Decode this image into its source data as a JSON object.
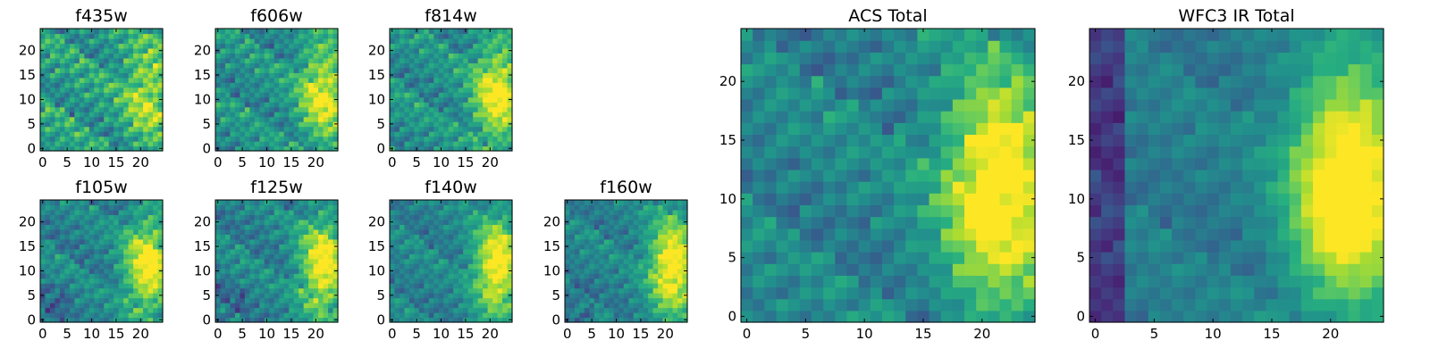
{
  "figure": {
    "colormap": "viridis",
    "colors": {
      "low": "#440154",
      "mid": "#21918c",
      "high": "#fde725",
      "axes": "#000000"
    }
  },
  "chart_data": [
    {
      "type": "heatmap",
      "title": "f435w",
      "shape": [
        25,
        25
      ],
      "xlim": [
        0,
        24
      ],
      "ylim": [
        0,
        24
      ],
      "xticks": [
        0,
        5,
        10,
        15,
        20
      ],
      "yticks": [
        0,
        5,
        10,
        15,
        20
      ],
      "field": "noisy, faint excess toward lower-right"
    },
    {
      "type": "heatmap",
      "title": "f606w",
      "shape": [
        25,
        25
      ],
      "xlim": [
        0,
        24
      ],
      "ylim": [
        0,
        24
      ],
      "xticks": [
        0,
        5,
        10,
        15,
        20
      ],
      "yticks": [
        0,
        5,
        10,
        15,
        20
      ],
      "field": "bright arc along right edge"
    },
    {
      "type": "heatmap",
      "title": "f814w",
      "shape": [
        25,
        25
      ],
      "xlim": [
        0,
        24
      ],
      "ylim": [
        0,
        24
      ],
      "xticks": [
        0,
        5,
        10,
        15,
        20
      ],
      "yticks": [
        0,
        5,
        10,
        15,
        20
      ],
      "field": "bright arc along right edge"
    },
    {
      "type": "heatmap",
      "title": "f105w",
      "shape": [
        25,
        25
      ],
      "xlim": [
        0,
        24
      ],
      "ylim": [
        0,
        24
      ],
      "xticks": [
        0,
        5,
        10,
        15,
        20
      ],
      "yticks": [
        0,
        5,
        10,
        15,
        20
      ],
      "field": "bright arc along right edge, dark patches lower-left"
    },
    {
      "type": "heatmap",
      "title": "f125w",
      "shape": [
        25,
        25
      ],
      "xlim": [
        0,
        24
      ],
      "ylim": [
        0,
        24
      ],
      "xticks": [
        0,
        5,
        10,
        15,
        20
      ],
      "yticks": [
        0,
        5,
        10,
        15,
        20
      ],
      "field": "bright arc along right edge"
    },
    {
      "type": "heatmap",
      "title": "f140w",
      "shape": [
        25,
        25
      ],
      "xlim": [
        0,
        24
      ],
      "ylim": [
        0,
        24
      ],
      "xticks": [
        0,
        5,
        10,
        15,
        20
      ],
      "yticks": [
        0,
        5,
        10,
        15,
        20
      ],
      "field": "bright arc along right edge"
    },
    {
      "type": "heatmap",
      "title": "f160w",
      "shape": [
        25,
        25
      ],
      "xlim": [
        0,
        24
      ],
      "ylim": [
        0,
        24
      ],
      "xticks": [
        0,
        5,
        10,
        15,
        20
      ],
      "yticks": [
        0,
        5,
        10,
        15,
        20
      ],
      "field": "bright arc along right edge"
    },
    {
      "type": "heatmap",
      "title": "ACS Total",
      "shape": [
        25,
        25
      ],
      "xlim": [
        0,
        24
      ],
      "ylim": [
        0,
        24
      ],
      "xticks": [
        0,
        5,
        10,
        15,
        20
      ],
      "yticks": [
        0,
        5,
        10,
        15,
        20
      ],
      "field": "bright arc peaking near x=18-23, y=5-15"
    },
    {
      "type": "heatmap",
      "title": "WFC3 IR Total",
      "shape": [
        25,
        25
      ],
      "xlim": [
        0,
        24
      ],
      "ylim": [
        0,
        24
      ],
      "xticks": [
        0,
        5,
        10,
        15,
        20
      ],
      "yticks": [
        0,
        5,
        10,
        15,
        20
      ],
      "field": "bright arc peaking near x=18-23, y=5-18; dark left column"
    }
  ]
}
